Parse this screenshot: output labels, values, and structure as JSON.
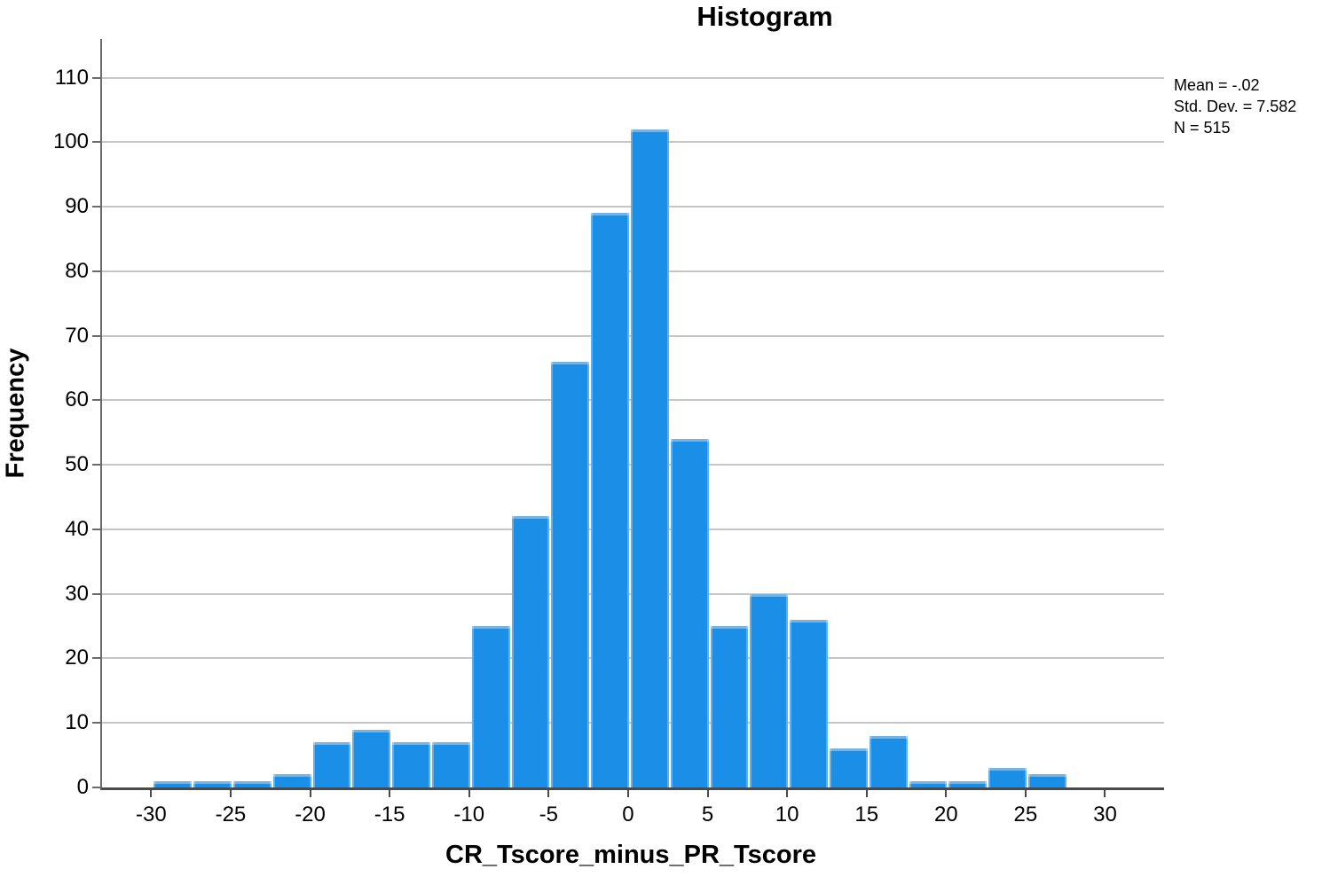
{
  "header": {
    "title": "Histogram"
  },
  "chart_data": {
    "type": "bar",
    "variant": "histogram",
    "title": "Histogram",
    "xlabel": "CR_Tscore_minus_PR_Tscore",
    "ylabel": "Frequency",
    "bin_width": 2.5,
    "bins": [
      {
        "x0": -30.0,
        "x1": -27.5,
        "count": 1
      },
      {
        "x0": -27.5,
        "x1": -25.0,
        "count": 1
      },
      {
        "x0": -25.0,
        "x1": -22.5,
        "count": 1
      },
      {
        "x0": -22.5,
        "x1": -20.0,
        "count": 2
      },
      {
        "x0": -20.0,
        "x1": -17.5,
        "count": 7
      },
      {
        "x0": -17.5,
        "x1": -15.0,
        "count": 9
      },
      {
        "x0": -15.0,
        "x1": -12.5,
        "count": 7
      },
      {
        "x0": -12.5,
        "x1": -10.0,
        "count": 7
      },
      {
        "x0": -10.0,
        "x1": -7.5,
        "count": 25
      },
      {
        "x0": -7.5,
        "x1": -5.0,
        "count": 42
      },
      {
        "x0": -5.0,
        "x1": -2.5,
        "count": 66
      },
      {
        "x0": -2.5,
        "x1": 0.0,
        "count": 89
      },
      {
        "x0": 0.0,
        "x1": 2.5,
        "count": 102
      },
      {
        "x0": 2.5,
        "x1": 5.0,
        "count": 54
      },
      {
        "x0": 5.0,
        "x1": 7.5,
        "count": 25
      },
      {
        "x0": 7.5,
        "x1": 10.0,
        "count": 30
      },
      {
        "x0": 10.0,
        "x1": 12.5,
        "count": 26
      },
      {
        "x0": 12.5,
        "x1": 15.0,
        "count": 6
      },
      {
        "x0": 15.0,
        "x1": 17.5,
        "count": 8
      },
      {
        "x0": 17.5,
        "x1": 20.0,
        "count": 1
      },
      {
        "x0": 20.0,
        "x1": 22.5,
        "count": 1
      },
      {
        "x0": 22.5,
        "x1": 25.0,
        "count": 3
      },
      {
        "x0": 25.0,
        "x1": 27.5,
        "count": 2
      }
    ],
    "x_ticks": [
      -30,
      -25,
      -20,
      -15,
      -10,
      -5,
      0,
      5,
      10,
      15,
      20,
      25,
      30
    ],
    "y_ticks": [
      0,
      10,
      20,
      30,
      40,
      50,
      60,
      70,
      80,
      90,
      100,
      110
    ],
    "xlim": [
      -33.2,
      33.6
    ],
    "ylim": [
      0,
      116
    ],
    "grid": "horizontal-only",
    "legend": "none",
    "stats_box": {
      "mean": "-.02",
      "std_dev": "7.582",
      "n": "515",
      "lines": [
        "Mean = -.02",
        "Std. Dev. = 7.582",
        "N = 515"
      ]
    },
    "colors": {
      "bar": "#1b8fe8",
      "gridline": "#c6c6c6",
      "axis": "#4a4a4a",
      "text": "#000000",
      "background": "#ffffff"
    }
  }
}
